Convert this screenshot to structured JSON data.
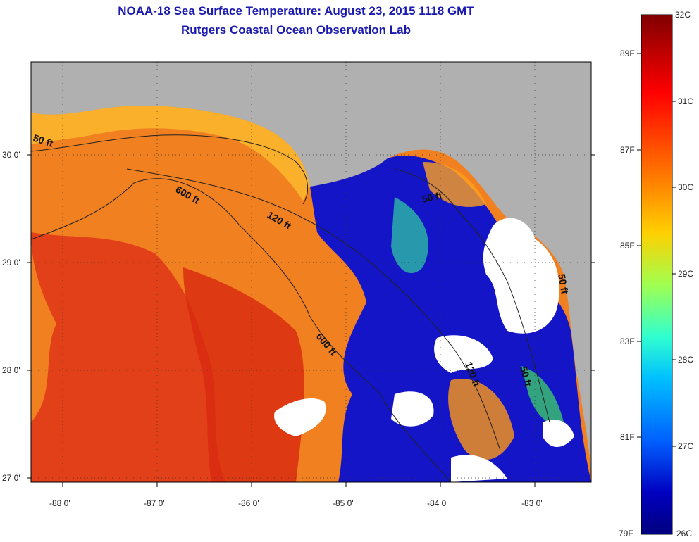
{
  "title_line1": "NOAA-18 Sea Surface Temperature:  August 23, 2015 1118 GMT",
  "title_line2": "Rutgers Coastal Ocean Observation Lab",
  "x_ticks": [
    "-88 0'",
    "-87 0'",
    "-86 0'",
    "-85 0'",
    "-84 0'",
    "-83 0'"
  ],
  "y_ticks": [
    "30 0'",
    "29 0'",
    "28 0'",
    "27 0'"
  ],
  "contours": [
    "50 ft",
    "600 ft",
    "120 ft",
    "50 ft",
    "600 ft",
    "120 ft",
    "50 ft",
    "50 ft"
  ],
  "colorbar": {
    "celsius": [
      "32C",
      "31C",
      "30C",
      "29C",
      "28C",
      "27C",
      "26C"
    ],
    "fahrenheit": [
      "89F",
      "87F",
      "85F",
      "83F",
      "81F",
      "79F"
    ],
    "colors": [
      "#800000",
      "#ff0000",
      "#ff8000",
      "#ffd000",
      "#c0ff40",
      "#40ffc0",
      "#00c0ff",
      "#0060ff",
      "#0000c0",
      "#00007f"
    ]
  },
  "colors": {
    "land": "#b0b0b0",
    "cloud": "#ffffff",
    "warm": "#f07020",
    "hot": "#e03010",
    "cool": "#1010c0",
    "title": "#1a1ab0"
  }
}
